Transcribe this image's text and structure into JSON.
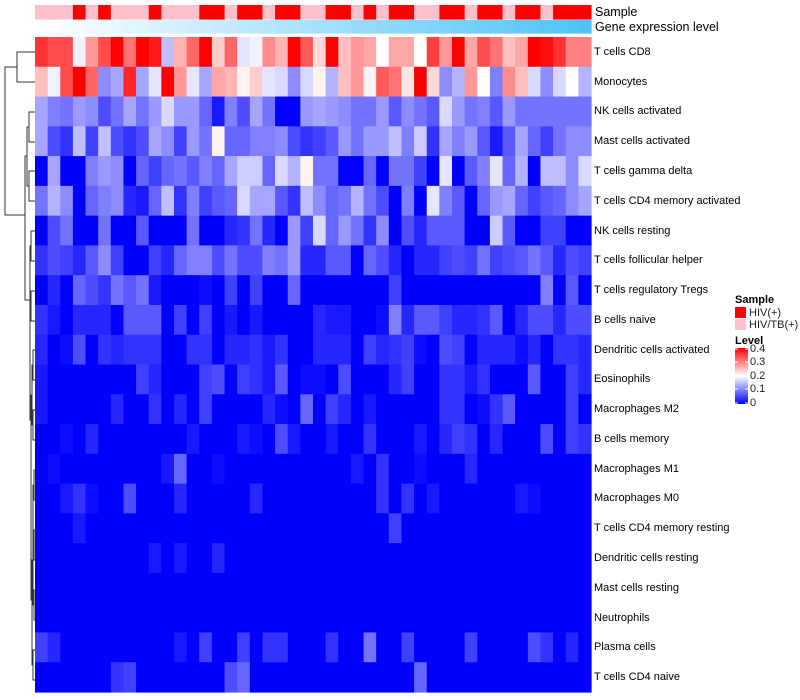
{
  "chart_data": {
    "type": "heatmap",
    "annotation_labels": {
      "sample": "Sample",
      "gene_expression": "Gene expression level"
    },
    "rows": [
      "T cells CD8",
      "Monocytes",
      "NK cells activated",
      "Mast cells activated",
      "T cells gamma delta",
      "T cells CD4 memory activated",
      "NK cells resting",
      "T cells follicular helper",
      "T cells regulatory  Tregs",
      "B cells naive",
      "Dendritic cells activated",
      "Eosinophils",
      "Macrophages M2",
      "B cells memory",
      "Macrophages M1",
      "Macrophages M0",
      "T cells CD4 memory resting",
      "Dendritic cells resting",
      "Mast cells resting",
      "Neutrophils",
      "Plasma cells",
      "T cells CD4 naive"
    ],
    "samples": [
      "HIV/TB(+)",
      "HIV/TB(+)",
      "HIV/TB(+)",
      "HIV(+)",
      "HIV/TB(+)",
      "HIV(+)",
      "HIV/TB(+)",
      "HIV/TB(+)",
      "HIV/TB(+)",
      "HIV(+)",
      "HIV/TB(+)",
      "HIV/TB(+)",
      "HIV/TB(+)",
      "HIV(+)",
      "HIV(+)",
      "HIV/TB(+)",
      "HIV(+)",
      "HIV(+)",
      "HIV/TB(+)",
      "HIV(+)",
      "HIV(+)",
      "HIV/TB(+)",
      "HIV/TB(+)",
      "HIV(+)",
      "HIV(+)",
      "HIV/TB(+)",
      "HIV(+)",
      "HIV/TB(+)",
      "HIV(+)",
      "HIV(+)",
      "HIV/TB(+)",
      "HIV/TB(+)",
      "HIV(+)",
      "HIV(+)",
      "HIV/TB(+)",
      "HIV(+)",
      "HIV(+)",
      "HIV/TB(+)",
      "HIV(+)",
      "HIV(+)",
      "HIV/TB(+)",
      "HIV(+)",
      "HIV(+)",
      "HIV(+)"
    ],
    "gene_expression_order": "increasing left to right",
    "values": [
      [
        0.36,
        0.34,
        0.34,
        0.19,
        0.28,
        0.34,
        0.4,
        0.31,
        0.4,
        0.38,
        0.15,
        0.26,
        0.32,
        0.4,
        0.24,
        0.32,
        0.18,
        0.19,
        0.29,
        0.26,
        0.4,
        0.33,
        0.23,
        0.4,
        0.25,
        0.28,
        0.27,
        0.2,
        0.27,
        0.27,
        0.2,
        0.35,
        0.28,
        0.4,
        0.27,
        0.34,
        0.31,
        0.25,
        0.27,
        0.4,
        0.39,
        0.36,
        0.3,
        0.3
      ],
      [
        0.25,
        0.19,
        0.34,
        0.4,
        0.32,
        0.11,
        0.13,
        0.37,
        0.13,
        0.18,
        0.4,
        0.28,
        0.18,
        0.13,
        0.27,
        0.26,
        0.21,
        0.24,
        0.18,
        0.17,
        0.11,
        0.17,
        0.21,
        0.14,
        0.25,
        0.28,
        0.21,
        0.33,
        0.31,
        0.22,
        0.4,
        0.23,
        0.11,
        0.14,
        0.28,
        0.2,
        0.1,
        0.29,
        0.25,
        0.17,
        0.11,
        0.17,
        0.2,
        0.14
      ],
      [
        0.13,
        0.1,
        0.09,
        0.12,
        0.11,
        0.06,
        0.09,
        0.13,
        0.09,
        0.12,
        0.17,
        0.12,
        0.12,
        0.08,
        0.02,
        0.1,
        0.06,
        0.13,
        0.09,
        0,
        0,
        0.12,
        0.13,
        0.12,
        0.11,
        0.09,
        0.09,
        0.12,
        0.07,
        0.11,
        0.09,
        0.07,
        0.17,
        0.12,
        0.09,
        0.1,
        0.07,
        0.12,
        0.09,
        0.09,
        0.09,
        0.09,
        0.09,
        0.09
      ],
      [
        0.13,
        0.06,
        0.04,
        0.15,
        0.05,
        0.15,
        0.06,
        0.04,
        0.06,
        0.13,
        0.11,
        0.05,
        0.12,
        0.09,
        0.21,
        0.08,
        0.08,
        0.1,
        0.1,
        0.11,
        0.06,
        0.04,
        0.05,
        0.07,
        0.12,
        0.09,
        0.12,
        0.12,
        0.15,
        0.1,
        0.16,
        0.04,
        0.13,
        0.1,
        0.12,
        0.07,
        0.02,
        0.07,
        0.13,
        0.08,
        0.05,
        0.09,
        0.11,
        0.11
      ],
      [
        0,
        0.13,
        0,
        0,
        0.1,
        0.12,
        0.11,
        0,
        0.08,
        0.05,
        0.08,
        0.09,
        0.07,
        0.1,
        0.08,
        0.13,
        0.16,
        0.16,
        0.08,
        0.17,
        0.14,
        0.21,
        0.09,
        0.09,
        0,
        0,
        0.08,
        0,
        0.09,
        0.09,
        0.05,
        0,
        0.18,
        0,
        0.07,
        0.1,
        0.18,
        0.08,
        0.14,
        0,
        0.15,
        0.15,
        0.11,
        0.17
      ],
      [
        0.09,
        0.14,
        0.11,
        0,
        0.08,
        0.1,
        0.11,
        0.03,
        0.02,
        0.08,
        0.15,
        0.04,
        0.1,
        0.05,
        0.07,
        0.08,
        0.17,
        0.13,
        0.13,
        0.07,
        0.04,
        0.15,
        0.11,
        0.08,
        0.09,
        0.14,
        0.09,
        0.06,
        0,
        0.1,
        0,
        0.18,
        0.1,
        0.07,
        0,
        0.08,
        0.12,
        0.13,
        0.08,
        0.05,
        0.07,
        0.08,
        0.11,
        0.13
      ],
      [
        0,
        0.06,
        0.09,
        0,
        0,
        0.09,
        0,
        0,
        0.07,
        0,
        0,
        0,
        0.09,
        0,
        0,
        0.03,
        0.04,
        0.09,
        0.03,
        0,
        0.12,
        0.05,
        0.17,
        0.08,
        0.12,
        0.09,
        0.04,
        0.11,
        0,
        0.06,
        0.03,
        0.07,
        0.07,
        0.07,
        0,
        0,
        0.16,
        0.07,
        0,
        0,
        0.05,
        0.05,
        0,
        0
      ],
      [
        0.04,
        0.06,
        0.05,
        0.03,
        0.07,
        0.11,
        0.05,
        0,
        0,
        0.05,
        0.03,
        0.08,
        0.1,
        0.1,
        0.06,
        0.09,
        0.06,
        0.06,
        0.1,
        0.09,
        0.12,
        0.03,
        0.03,
        0.07,
        0.07,
        0,
        0.08,
        0.06,
        0.03,
        0,
        0.03,
        0.03,
        0.05,
        0.06,
        0.05,
        0.09,
        0.05,
        0.06,
        0.07,
        0.09,
        0.07,
        0.03,
        0.06,
        0.05
      ],
      [
        0,
        0.03,
        0,
        0.08,
        0.06,
        0.04,
        0.09,
        0.07,
        0.09,
        0.02,
        0,
        0,
        0,
        0.01,
        0,
        0.05,
        0,
        0.05,
        0,
        0,
        0.08,
        0,
        0,
        0,
        0,
        0,
        0,
        0,
        0.05,
        0,
        0,
        0,
        0,
        0,
        0,
        0,
        0,
        0,
        0,
        0,
        0.1,
        0,
        0.07,
        0
      ],
      [
        0.04,
        0.02,
        0,
        0.03,
        0.03,
        0.03,
        0,
        0.07,
        0.07,
        0.07,
        0,
        0.05,
        0,
        0.05,
        0,
        0.02,
        0,
        0.02,
        0,
        0,
        0,
        0,
        0.03,
        0.02,
        0.02,
        0,
        0,
        0.01,
        0.1,
        0.03,
        0.07,
        0.07,
        0.05,
        0.03,
        0.03,
        0.04,
        0.07,
        0,
        0.03,
        0.06,
        0.06,
        0.03,
        0.06,
        0.06
      ],
      [
        0.03,
        0,
        0.01,
        0.06,
        0,
        0.04,
        0.03,
        0.04,
        0.04,
        0.04,
        0,
        0,
        0.04,
        0.04,
        0,
        0.03,
        0.03,
        0.04,
        0.02,
        0.04,
        0,
        0,
        0.03,
        0.03,
        0.03,
        0,
        0.05,
        0.03,
        0.04,
        0.05,
        0.01,
        0,
        0.06,
        0.05,
        0,
        0.03,
        0.03,
        0.03,
        0.01,
        0.03,
        0,
        0.04,
        0.04,
        0.03
      ],
      [
        0.02,
        0,
        0,
        0,
        0,
        0,
        0,
        0,
        0.05,
        0.03,
        0,
        0,
        0,
        0.05,
        0.06,
        0,
        0.05,
        0.04,
        0.02,
        0.07,
        0,
        0.01,
        0.01,
        0,
        0.06,
        0,
        0,
        0,
        0.03,
        0.05,
        0,
        0,
        0.04,
        0.04,
        0.02,
        0.04,
        0,
        0,
        0,
        0.07,
        0,
        0,
        0.05,
        0.03
      ],
      [
        0.02,
        0,
        0,
        0,
        0,
        0,
        0.03,
        0,
        0,
        0.04,
        0,
        0.03,
        0,
        0.05,
        0,
        0,
        0,
        0,
        0.03,
        0.01,
        0,
        0.08,
        0,
        0.05,
        0.03,
        0,
        0.02,
        0,
        0,
        0,
        0,
        0,
        0.04,
        0.04,
        0,
        0.01,
        0.04,
        0.07,
        0,
        0,
        0,
        0,
        0.05,
        0
      ],
      [
        0,
        0,
        0.01,
        0,
        0.03,
        0,
        0,
        0,
        0,
        0,
        0,
        0,
        0.02,
        0,
        0,
        0,
        0.02,
        0.01,
        0,
        0.06,
        0.02,
        0,
        0,
        0.02,
        0,
        0,
        0.04,
        0,
        0,
        0,
        0.02,
        0,
        0.03,
        0.05,
        0.04,
        0,
        0.03,
        0,
        0,
        0,
        0.06,
        0,
        0.05,
        0.04
      ],
      [
        0,
        0.01,
        0,
        0,
        0,
        0,
        0,
        0,
        0,
        0,
        0.02,
        0.08,
        0,
        0,
        0.01,
        0,
        0,
        0,
        0,
        0,
        0,
        0,
        0,
        0,
        0,
        0.02,
        0,
        0.04,
        0,
        0,
        0.01,
        0,
        0,
        0,
        0.03,
        0,
        0,
        0,
        0,
        0,
        0,
        0,
        0,
        0
      ],
      [
        0,
        0,
        0.02,
        0.04,
        0.01,
        0,
        0,
        0.06,
        0,
        0,
        0,
        0.03,
        0,
        0,
        0,
        0,
        0,
        0.03,
        0,
        0,
        0,
        0,
        0,
        0,
        0,
        0,
        0,
        0.04,
        0,
        0.04,
        0,
        0.02,
        0,
        0,
        0,
        0,
        0,
        0,
        0.02,
        0.01,
        0,
        0,
        0,
        0
      ],
      [
        0,
        0,
        0,
        0.02,
        0,
        0,
        0,
        0,
        0,
        0,
        0,
        0,
        0,
        0,
        0,
        0,
        0,
        0,
        0,
        0,
        0,
        0,
        0,
        0,
        0,
        0,
        0,
        0,
        0.05,
        0,
        0,
        0,
        0,
        0,
        0,
        0,
        0,
        0,
        0,
        0,
        0,
        0,
        0,
        0
      ],
      [
        0,
        0,
        0,
        0,
        0,
        0,
        0,
        0,
        0,
        0.02,
        0,
        0.02,
        0,
        0,
        0.03,
        0,
        0,
        0,
        0,
        0,
        0,
        0,
        0,
        0,
        0,
        0,
        0,
        0,
        0,
        0,
        0,
        0,
        0,
        0,
        0,
        0,
        0,
        0,
        0,
        0,
        0,
        0,
        0,
        0
      ],
      [
        0,
        0,
        0,
        0,
        0,
        0,
        0,
        0,
        0,
        0,
        0,
        0,
        0,
        0,
        0,
        0,
        0,
        0,
        0,
        0,
        0,
        0,
        0,
        0,
        0,
        0,
        0,
        0,
        0,
        0,
        0,
        0,
        0,
        0,
        0,
        0,
        0,
        0,
        0,
        0,
        0,
        0,
        0,
        0
      ],
      [
        0,
        0,
        0,
        0,
        0,
        0,
        0,
        0,
        0,
        0,
        0,
        0,
        0,
        0,
        0,
        0,
        0,
        0,
        0,
        0,
        0,
        0,
        0,
        0,
        0,
        0,
        0,
        0,
        0,
        0,
        0,
        0,
        0,
        0,
        0,
        0,
        0,
        0,
        0,
        0,
        0,
        0,
        0,
        0
      ],
      [
        0.05,
        0.03,
        0,
        0,
        0,
        0,
        0,
        0,
        0,
        0,
        0,
        0.02,
        0,
        0.05,
        0,
        0,
        0.05,
        0,
        0.04,
        0.04,
        0,
        0,
        0,
        0.04,
        0,
        0,
        0.09,
        0,
        0,
        0.05,
        0,
        0,
        0,
        0,
        0.05,
        0,
        0,
        0,
        0,
        0.06,
        0.04,
        0,
        0.03,
        0
      ],
      [
        0,
        0,
        0,
        0,
        0,
        0,
        0.04,
        0.05,
        0,
        0,
        0,
        0,
        0,
        0,
        0,
        0.06,
        0.08,
        0,
        0,
        0,
        0,
        0,
        0,
        0,
        0,
        0,
        0,
        0,
        0,
        0,
        0.08,
        0,
        0,
        0,
        0,
        0,
        0,
        0,
        0,
        0,
        0,
        0,
        0,
        0
      ]
    ],
    "color_scale": {
      "min": 0,
      "mid": 0.2,
      "max": 0.4,
      "low": "#0000ff",
      "midColor": "#ffffff",
      "high": "#ff0000"
    },
    "sample_colors": {
      "HIV(+)": "#ff0000",
      "HIV/TB(+)": "#ffc0cb"
    },
    "gene_expression_colors": {
      "low": "#ffffff",
      "high": "#4fc3f7"
    },
    "legend": {
      "sample_title": "Sample",
      "sample_items": [
        "HIV(+)",
        "HIV/TB(+)"
      ],
      "level_title": "Level",
      "level_ticks": [
        "0.4",
        "0.3",
        "0.2",
        "0.1",
        "0"
      ]
    }
  }
}
